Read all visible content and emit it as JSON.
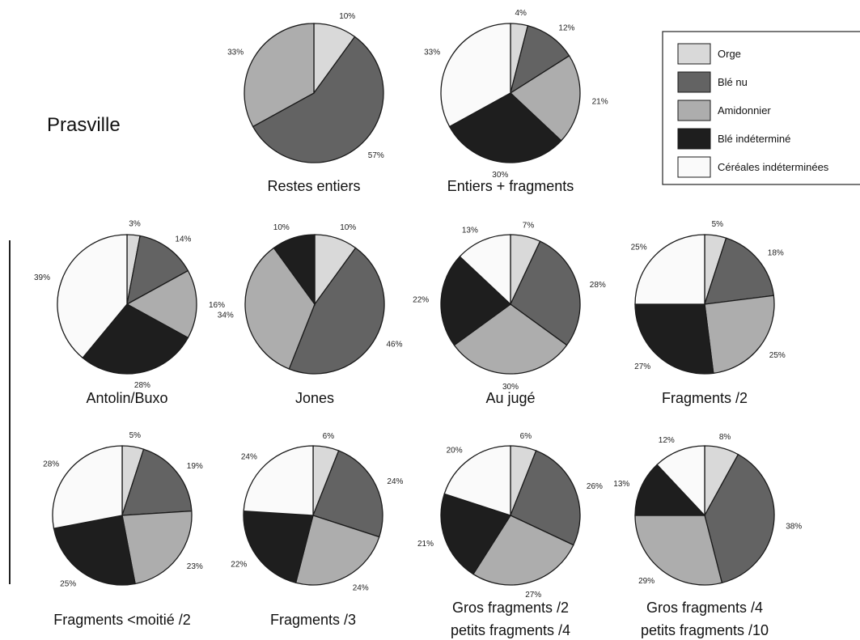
{
  "site_label": "Prasville",
  "legend": [
    {
      "label": "Orge",
      "color": "#d9d9d9"
    },
    {
      "label": "Blé nu",
      "color": "#636363"
    },
    {
      "label": "Amidonnier",
      "color": "#adadad"
    },
    {
      "label": "Blé indéterminé",
      "color": "#1e1e1e"
    },
    {
      "label": "Céréales indéterminées",
      "color": "#fafafa"
    }
  ],
  "chart_data": [
    {
      "type": "pie",
      "title": [
        "Restes entiers"
      ],
      "categories": [
        "Orge",
        "Blé nu",
        "Amidonnier"
      ],
      "values": [
        10,
        57,
        33
      ],
      "labels": [
        "10%",
        "57%",
        "33%"
      ]
    },
    {
      "type": "pie",
      "title": [
        "Entiers + fragments"
      ],
      "categories": [
        "Orge",
        "Blé nu",
        "Amidonnier",
        "Blé indéterminé",
        "Céréales indéterminées"
      ],
      "values": [
        4,
        12,
        21,
        30,
        33
      ],
      "labels": [
        "4%",
        "12%",
        "21%",
        "30%",
        "33%"
      ]
    },
    {
      "type": "pie",
      "title": [
        "Antolin/Buxo"
      ],
      "categories": [
        "Orge",
        "Blé nu",
        "Amidonnier",
        "Blé indéterminé",
        "Céréales indéterminées"
      ],
      "values": [
        3,
        14,
        16,
        28,
        39
      ],
      "labels": [
        "3%",
        "14%",
        "16%",
        "28%",
        "39%"
      ]
    },
    {
      "type": "pie",
      "title": [
        "Jones"
      ],
      "categories": [
        "Orge",
        "Blé nu",
        "Amidonnier",
        "Blé indéterminé"
      ],
      "values": [
        10,
        46,
        34,
        10
      ],
      "labels": [
        "10%",
        "46%",
        "34%",
        "10%"
      ]
    },
    {
      "type": "pie",
      "title": [
        "Au jugé"
      ],
      "categories": [
        "Orge",
        "Blé nu",
        "Amidonnier",
        "Blé indéterminé",
        "Céréales indéterminées"
      ],
      "values": [
        7,
        28,
        30,
        22,
        13
      ],
      "labels": [
        "7%",
        "28%",
        "30%",
        "22%",
        "13%"
      ]
    },
    {
      "type": "pie",
      "title": [
        "Fragments /2"
      ],
      "categories": [
        "Orge",
        "Blé nu",
        "Amidonnier",
        "Blé indéterminé",
        "Céréales indéterminées"
      ],
      "values": [
        5,
        18,
        25,
        27,
        25
      ],
      "labels": [
        "5%",
        "18%",
        "25%",
        "27%",
        "25%"
      ]
    },
    {
      "type": "pie",
      "title": [
        "Fragments <moitié /2"
      ],
      "categories": [
        "Orge",
        "Blé nu",
        "Amidonnier",
        "Blé indéterminé",
        "Céréales indéterminées"
      ],
      "values": [
        5,
        19,
        23,
        25,
        28
      ],
      "labels": [
        "5%",
        "19%",
        "23%",
        "25%",
        "28%"
      ]
    },
    {
      "type": "pie",
      "title": [
        "Fragments /3"
      ],
      "categories": [
        "Orge",
        "Blé nu",
        "Amidonnier",
        "Blé indéterminé",
        "Céréales indéterminées"
      ],
      "values": [
        6,
        24,
        24,
        22,
        24
      ],
      "labels": [
        "6%",
        "24%",
        "24%",
        "22%",
        "24%"
      ]
    },
    {
      "type": "pie",
      "title": [
        "Gros fragments /2",
        "petits fragments /4"
      ],
      "categories": [
        "Orge",
        "Blé nu",
        "Amidonnier",
        "Blé indéterminé",
        "Céréales indéterminées"
      ],
      "values": [
        6,
        26,
        27,
        21,
        20
      ],
      "labels": [
        "6%",
        "26%",
        "27%",
        "21%",
        "20%"
      ]
    },
    {
      "type": "pie",
      "title": [
        "Gros fragments /4",
        "petits fragments /10"
      ],
      "categories": [
        "Orge",
        "Blé nu",
        "Amidonnier",
        "Blé indéterminé",
        "Céréales indéterminées"
      ],
      "values": [
        8,
        38,
        29,
        13,
        12
      ],
      "labels": [
        "8%",
        "38%",
        "29%",
        "13%",
        "12%"
      ]
    }
  ]
}
